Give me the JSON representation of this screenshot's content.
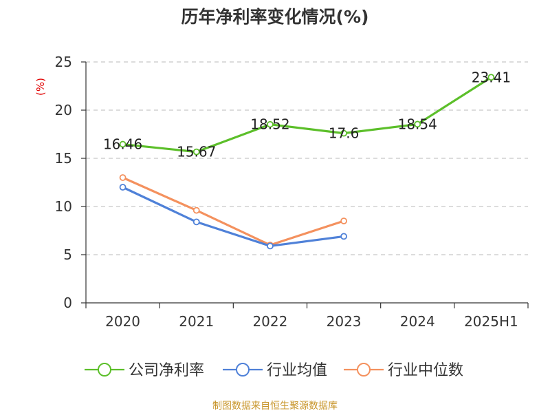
{
  "chart_data": {
    "type": "line",
    "title": "历年净利率变化情况(%)",
    "ylabel": "(%)",
    "xlabel": "",
    "categories": [
      "2020",
      "2021",
      "2022",
      "2023",
      "2024",
      "2025H1"
    ],
    "ylim": [
      0,
      25
    ],
    "yticks": [
      0,
      5,
      10,
      15,
      20,
      25
    ],
    "grid": "horizontal-dashed",
    "legend_position": "bottom",
    "series": [
      {
        "name": "公司净利率",
        "color": "#5cbf2a",
        "values": [
          16.46,
          15.67,
          18.52,
          17.6,
          18.54,
          23.41
        ],
        "labels": [
          "16.46",
          "15.67",
          "18.52",
          "17.6",
          "18.54",
          "23.41"
        ]
      },
      {
        "name": "行业均值",
        "color": "#4f81d8",
        "values": [
          12.0,
          8.4,
          5.9,
          6.9,
          null,
          null
        ]
      },
      {
        "name": "行业中位数",
        "color": "#f4915e",
        "values": [
          13.0,
          9.6,
          6.0,
          8.5,
          null,
          null
        ]
      }
    ],
    "source": "制图数据来自恒生聚源数据库"
  }
}
